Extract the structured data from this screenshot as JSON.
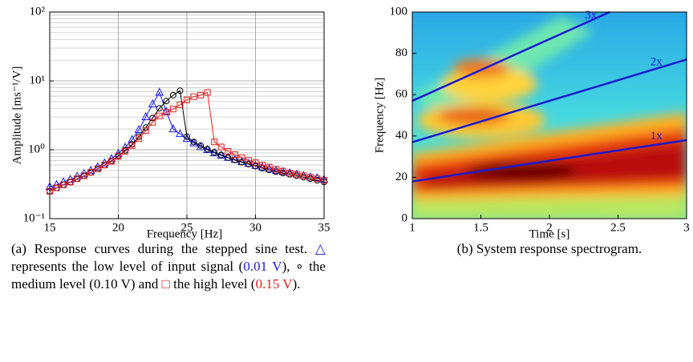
{
  "chart_data": [
    {
      "type": "line",
      "xlabel": "Frequency [Hz]",
      "ylabel": "Amplitude [ms⁻¹/V]",
      "x": [
        15,
        15.5,
        16,
        16.5,
        17,
        17.5,
        18,
        18.5,
        19,
        19.5,
        20,
        20.5,
        21,
        21.5,
        22,
        22.5,
        23,
        23.5,
        24,
        24.5,
        25,
        25.5,
        26,
        26.5,
        27,
        27.5,
        28,
        28.5,
        29,
        29.5,
        30,
        30.5,
        31,
        31.5,
        32,
        32.5,
        33,
        33.5,
        34,
        34.5,
        35
      ],
      "series": [
        {
          "color": "#1a1ae6",
          "marker": "triangle",
          "values": [
            0.29,
            0.31,
            0.34,
            0.37,
            0.41,
            0.45,
            0.5,
            0.56,
            0.64,
            0.74,
            0.88,
            1.08,
            1.4,
            1.95,
            3.0,
            4.6,
            6.8,
            3.6,
            2.0,
            1.7,
            1.45,
            1.25,
            1.1,
            1.0,
            0.9,
            0.83,
            0.77,
            0.72,
            0.67,
            0.63,
            0.59,
            0.56,
            0.53,
            0.5,
            0.48,
            0.46,
            0.44,
            0.42,
            0.4,
            0.39,
            0.37
          ]
        },
        {
          "color": "#000000",
          "marker": "circle",
          "values": [
            0.25,
            0.28,
            0.31,
            0.34,
            0.38,
            0.42,
            0.47,
            0.53,
            0.6,
            0.69,
            0.82,
            0.98,
            1.2,
            1.55,
            2.1,
            2.9,
            4.0,
            5.1,
            6.2,
            7.2,
            1.55,
            1.3,
            1.15,
            1.02,
            0.92,
            0.84,
            0.77,
            0.71,
            0.66,
            0.62,
            0.58,
            0.54,
            0.51,
            0.48,
            0.46,
            0.44,
            0.42,
            0.4,
            0.38,
            0.36,
            0.34
          ]
        },
        {
          "color": "#e61a1a",
          "marker": "square",
          "values": [
            0.25,
            0.28,
            0.31,
            0.34,
            0.38,
            0.42,
            0.47,
            0.53,
            0.6,
            0.68,
            0.8,
            0.95,
            1.15,
            1.45,
            1.9,
            2.5,
            3.1,
            3.5,
            3.9,
            4.5,
            5.3,
            5.9,
            6.2,
            6.8,
            1.3,
            1.1,
            0.95,
            0.85,
            0.77,
            0.7,
            0.65,
            0.6,
            0.56,
            0.52,
            0.49,
            0.46,
            0.44,
            0.42,
            0.4,
            0.38,
            0.36
          ]
        }
      ],
      "xlim": [
        15,
        35
      ],
      "xticks": [
        15,
        20,
        25,
        30,
        35
      ],
      "ylim": [
        0.1,
        100
      ],
      "ylog": true,
      "yticks": [
        {
          "value": 0.1,
          "label": "10⁻¹"
        },
        {
          "value": 1,
          "label": "10⁰"
        },
        {
          "value": 10,
          "label": "10¹"
        },
        {
          "value": 100,
          "label": "10²"
        }
      ],
      "yminorticks": [
        0.2,
        0.3,
        0.4,
        0.5,
        0.6,
        0.7,
        0.8,
        0.9,
        2,
        3,
        4,
        5,
        6,
        7,
        8,
        9,
        20,
        30,
        40,
        50,
        60,
        70,
        80,
        90
      ],
      "grid": true
    },
    {
      "type": "line",
      "xlabel": "Time [s]",
      "ylabel": "Frequency [Hz]",
      "series": [
        {
          "name": "1x",
          "color": "#1a1ad0",
          "x": [
            1,
            3
          ],
          "values": [
            18,
            38
          ]
        },
        {
          "name": "2x",
          "color": "#1a1ad0",
          "x": [
            1,
            3
          ],
          "values": [
            37,
            77
          ]
        },
        {
          "name": "3x",
          "color": "#1a1ad0",
          "x": [
            1,
            2.44
          ],
          "values": [
            57,
            100
          ]
        }
      ],
      "xlim": [
        1,
        3
      ],
      "xticks": [
        1,
        1.5,
        2,
        2.5,
        3
      ],
      "ylim": [
        0,
        100
      ],
      "yticks": [
        0,
        20,
        40,
        60,
        80,
        100
      ],
      "grid": false
    }
  ],
  "captions": [
    {
      "segments": [
        {
          "text": "(a) Response curves during the stepped sine test. ",
          "color": "#000000"
        },
        {
          "text": "△",
          "color": "#1a1ae6"
        },
        {
          "text": " represents the low level of input signal (",
          "color": "#000000"
        },
        {
          "text": "0.01 V",
          "color": "#1a1ae6"
        },
        {
          "text": "), ∘ the medium level (0.10 V) and ",
          "color": "#000000"
        },
        {
          "text": "□",
          "color": "#e61a1a"
        },
        {
          "text": " the high level (",
          "color": "#000000"
        },
        {
          "text": "0.15 V",
          "color": "#e61a1a"
        },
        {
          "text": ").",
          "color": "#000000"
        }
      ]
    },
    {
      "segments": [
        {
          "text": "(b) System response spectrogram.",
          "color": "#000000"
        }
      ]
    }
  ]
}
